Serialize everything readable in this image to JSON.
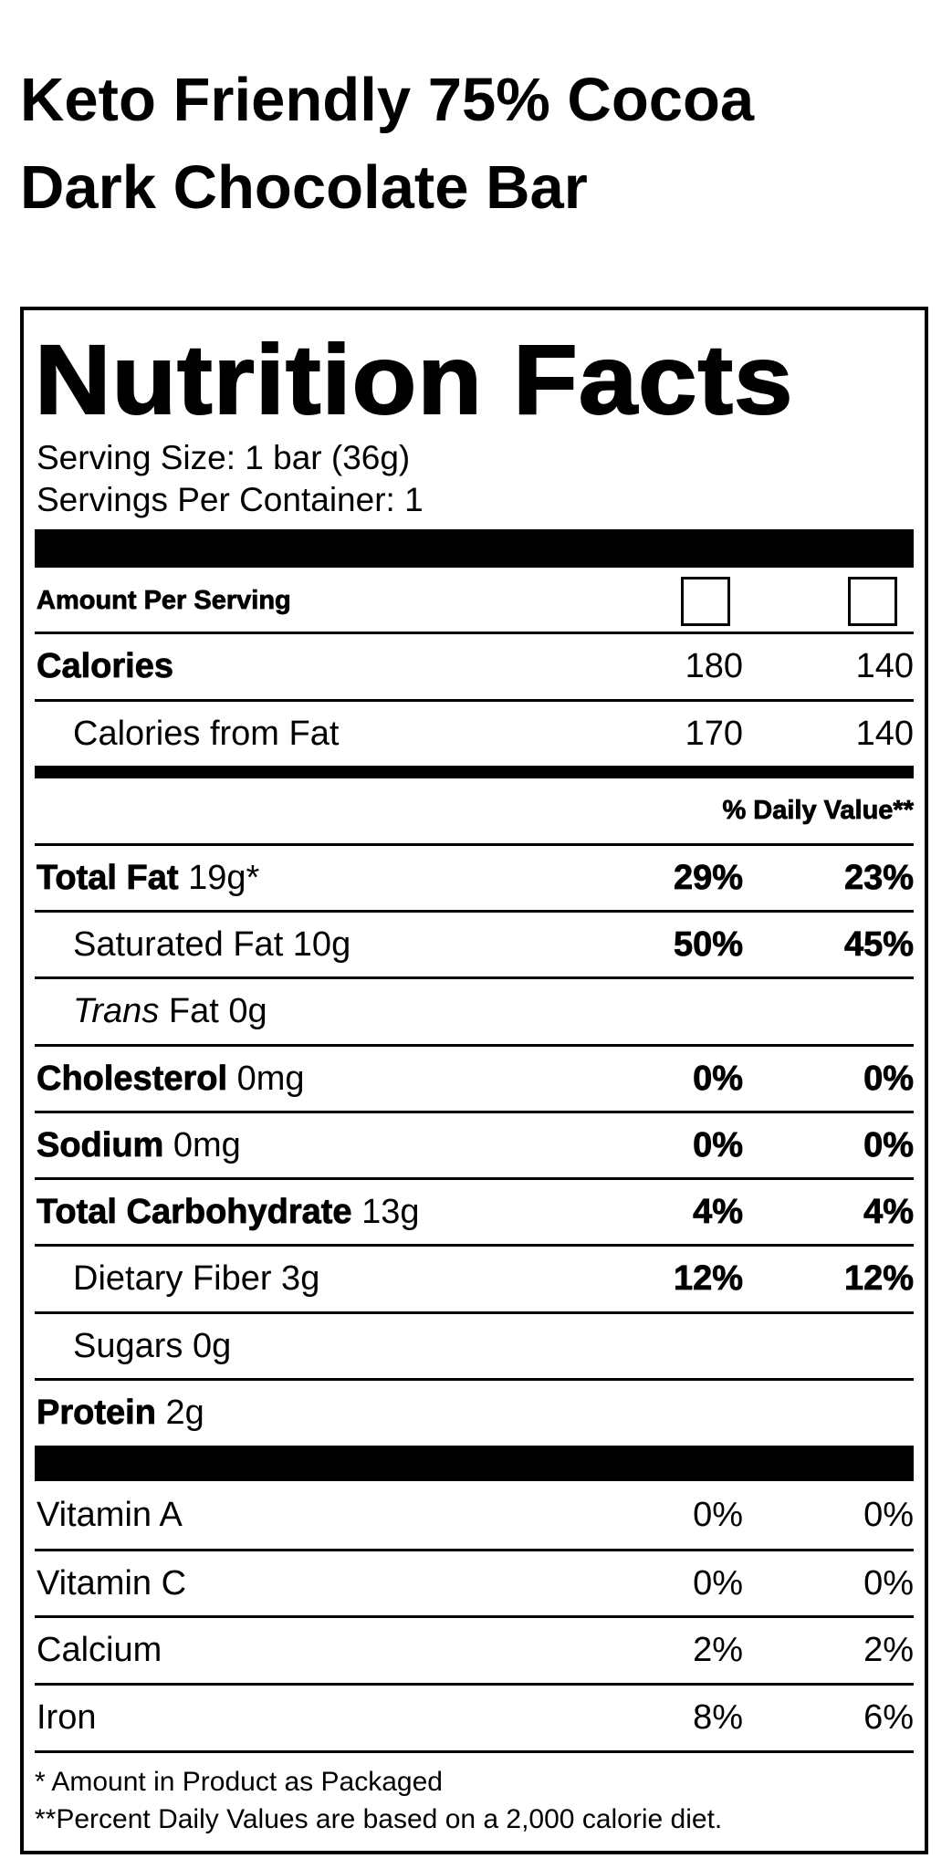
{
  "product": {
    "title_line1": "Keto Friendly 75% Cocoa",
    "title_line2": "Dark Chocolate Bar"
  },
  "label": {
    "heading": "Nutrition Facts",
    "serving_size": "Serving Size: 1 bar (36g)",
    "servings_per_container": "Servings Per Container: 1",
    "amount_per_serving": "Amount Per Serving",
    "column_checkboxes": [
      {
        "checked": false
      },
      {
        "checked": false
      }
    ],
    "calories": {
      "label": "Calories",
      "v1": "180",
      "v2": "140"
    },
    "calories_from_fat": {
      "label": "Calories from Fat",
      "v1": "170",
      "v2": "140"
    },
    "daily_value_header": "% Daily Value**",
    "nutrients": [
      {
        "name": "Total Fat",
        "amount": "19g*",
        "dv1": "29%",
        "dv2": "23%"
      },
      {
        "name": "Saturated Fat 10g",
        "amount": "",
        "dv1": "50%",
        "dv2": "45%"
      },
      {
        "name": "Trans",
        "amount": "Fat 0g",
        "dv1": "",
        "dv2": ""
      },
      {
        "name": "Cholesterol",
        "amount": "0mg",
        "dv1": "0%",
        "dv2": "0%"
      },
      {
        "name": "Sodium",
        "amount": "0mg",
        "dv1": "0%",
        "dv2": "0%"
      },
      {
        "name": "Total Carbohydrate",
        "amount": "13g",
        "dv1": "4%",
        "dv2": "4%"
      },
      {
        "name": "Dietary Fiber 3g",
        "amount": "",
        "dv1": "12%",
        "dv2": "12%"
      },
      {
        "name": "Sugars 0g",
        "amount": "",
        "dv1": "",
        "dv2": ""
      },
      {
        "name": "Protein",
        "amount": "2g",
        "dv1": "",
        "dv2": ""
      }
    ],
    "vitamins": [
      {
        "name": "Vitamin A",
        "dv1": "0%",
        "dv2": "0%"
      },
      {
        "name": "Vitamin C",
        "dv1": "0%",
        "dv2": "0%"
      },
      {
        "name": "Calcium",
        "dv1": "2%",
        "dv2": "2%"
      },
      {
        "name": "Iron",
        "dv1": "8%",
        "dv2": "6%"
      }
    ],
    "footnote1": "* Amount in Product as Packaged",
    "footnote2": "**Percent Daily Values are based on a 2,000 calorie diet."
  }
}
